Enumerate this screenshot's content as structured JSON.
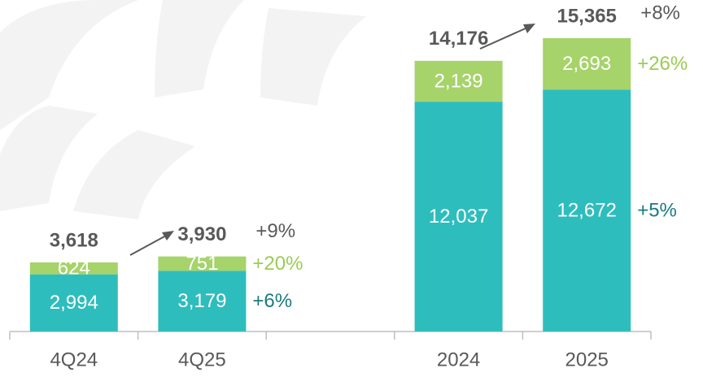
{
  "chart_data": {
    "type": "stacked_bar",
    "categories": [
      "4Q24",
      "4Q25",
      null,
      "2024",
      "2025"
    ],
    "series": [
      {
        "name": null,
        "color": "#2ebdbd",
        "label_color": "#1a7a80",
        "values": [
          2994,
          3179,
          null,
          12037,
          12672
        ],
        "value_labels": [
          "2,994",
          "3,179",
          null,
          "12,037",
          "12,672"
        ],
        "growth_labels": [
          null,
          "+6%",
          null,
          null,
          "+5%"
        ]
      },
      {
        "name": null,
        "color": "#a6d36a",
        "label_color": "#9ccc52",
        "values": [
          624,
          751,
          null,
          2139,
          2693
        ],
        "value_labels": [
          "624",
          "751",
          null,
          "2,139",
          "2,693"
        ],
        "growth_labels": [
          null,
          "+20%",
          null,
          null,
          "+26%"
        ]
      }
    ],
    "totals": [
      3618,
      3930,
      null,
      14176,
      15365
    ],
    "total_labels": [
      "3,618",
      "3,930",
      null,
      "14,176",
      "15,365"
    ],
    "total_growth_labels": [
      null,
      "+9%",
      null,
      null,
      "+8%"
    ],
    "ylim": [
      0,
      16000
    ]
  }
}
